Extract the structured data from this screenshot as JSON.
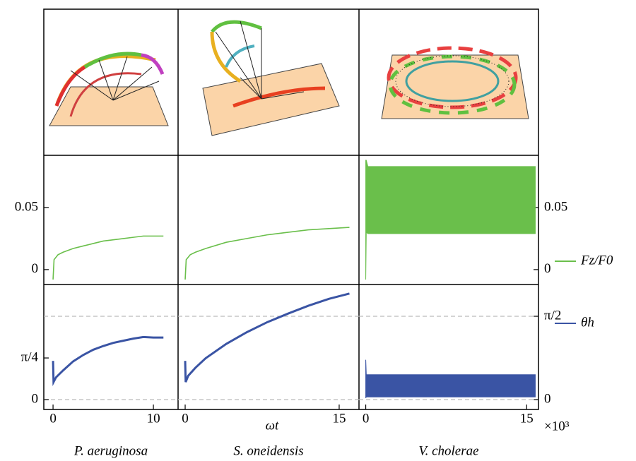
{
  "chart_data": [
    {
      "type": "line",
      "color": "#6abf4b",
      "x": [
        0,
        0.1,
        0.5,
        1,
        2,
        3,
        4,
        5,
        6,
        7,
        8,
        9,
        10,
        11
      ],
      "series": [
        {
          "values": [
            -0.008,
            0.008,
            0.012,
            0.014,
            0.017,
            0.019,
            0.021,
            0.023,
            0.024,
            0.025,
            0.026,
            0.027,
            0.027,
            0.027
          ]
        }
      ],
      "xlim": [
        -0.92,
        12.46
      ],
      "ylim": [
        -0.012,
        0.092
      ],
      "yticks": [
        0,
        0.05
      ]
    },
    {
      "type": "line",
      "color": "#6abf4b",
      "x": [
        0,
        0.1,
        0.5,
        1,
        2,
        4,
        6,
        8,
        10,
        12,
        14,
        16
      ],
      "series": [
        {
          "values": [
            -0.008,
            0.008,
            0.012,
            0.014,
            0.017,
            0.022,
            0.025,
            0.028,
            0.03,
            0.032,
            0.033,
            0.034
          ]
        }
      ],
      "xlim": [
        -0.69,
        16.93
      ],
      "ylim": [
        -0.012,
        0.092
      ]
    },
    {
      "type": "band",
      "color": "#6abf4b",
      "x": [
        0,
        0.05,
        0.2,
        15.8
      ],
      "series": [
        {
          "values": [
            0.088,
            0.088,
            0.083,
            0.083
          ]
        },
        {
          "values": [
            -0.008,
            0.03,
            0.029,
            0.029
          ]
        }
      ],
      "xlim": [
        -0.63,
        16.1
      ],
      "ylim": [
        -0.012,
        0.092
      ],
      "yticks": [
        0,
        0.05
      ]
    },
    {
      "type": "line",
      "color": "#3a54a4",
      "x": [
        0,
        0.05,
        0.3,
        1,
        2,
        3,
        4,
        5,
        6,
        7,
        8,
        9,
        10,
        11
      ],
      "series": [
        {
          "values": [
            0.73,
            0.33,
            0.42,
            0.55,
            0.72,
            0.84,
            0.94,
            1.01,
            1.07,
            1.11,
            1.15,
            1.18,
            1.17,
            1.17
          ]
        }
      ],
      "xlim": [
        -0.92,
        12.46
      ],
      "ylim": [
        -0.186,
        2.17
      ],
      "xticks": [
        0,
        10
      ],
      "yticks": [
        0,
        {
          "value": 0.785,
          "label": "π/4"
        }
      ],
      "hlines": [
        0,
        1.571
      ]
    },
    {
      "type": "line",
      "color": "#3a54a4",
      "x": [
        0,
        0.05,
        0.3,
        1,
        2,
        4,
        6,
        8,
        10,
        12,
        14,
        16
      ],
      "series": [
        {
          "values": [
            0.73,
            0.33,
            0.45,
            0.6,
            0.78,
            1.05,
            1.27,
            1.46,
            1.62,
            1.77,
            1.9,
            2.0
          ]
        }
      ],
      "xlim": [
        -0.69,
        16.93
      ],
      "ylim": [
        -0.186,
        2.17
      ],
      "xticks": [
        0,
        15
      ],
      "hlines": [
        0,
        1.571
      ]
    },
    {
      "type": "band",
      "color": "#3a54a4",
      "x": [
        0,
        0.05,
        0.2,
        15.8
      ],
      "series": [
        {
          "values": [
            0.75,
            0.47,
            0.47,
            0.47
          ]
        },
        {
          "values": [
            0.03,
            0.05,
            0.05,
            0.05
          ]
        }
      ],
      "xlim": [
        -0.63,
        16.1
      ],
      "ylim": [
        -0.186,
        2.17
      ],
      "xticks": [
        0,
        15
      ],
      "yticks": [
        0,
        {
          "value": 1.571,
          "label": "π/2"
        }
      ],
      "hlines": [
        0,
        1.571
      ]
    }
  ],
  "figure": {
    "xlabel": "ωt",
    "x_scale_label": "×10³",
    "column_labels": [
      "P. aeruginosa",
      "S. oneidensis",
      "V. cholerae"
    ],
    "legend": [
      {
        "name": "Fz/F0",
        "color": "#6abf4b"
      },
      {
        "name": "θh",
        "color": "#3a54a4"
      }
    ]
  }
}
